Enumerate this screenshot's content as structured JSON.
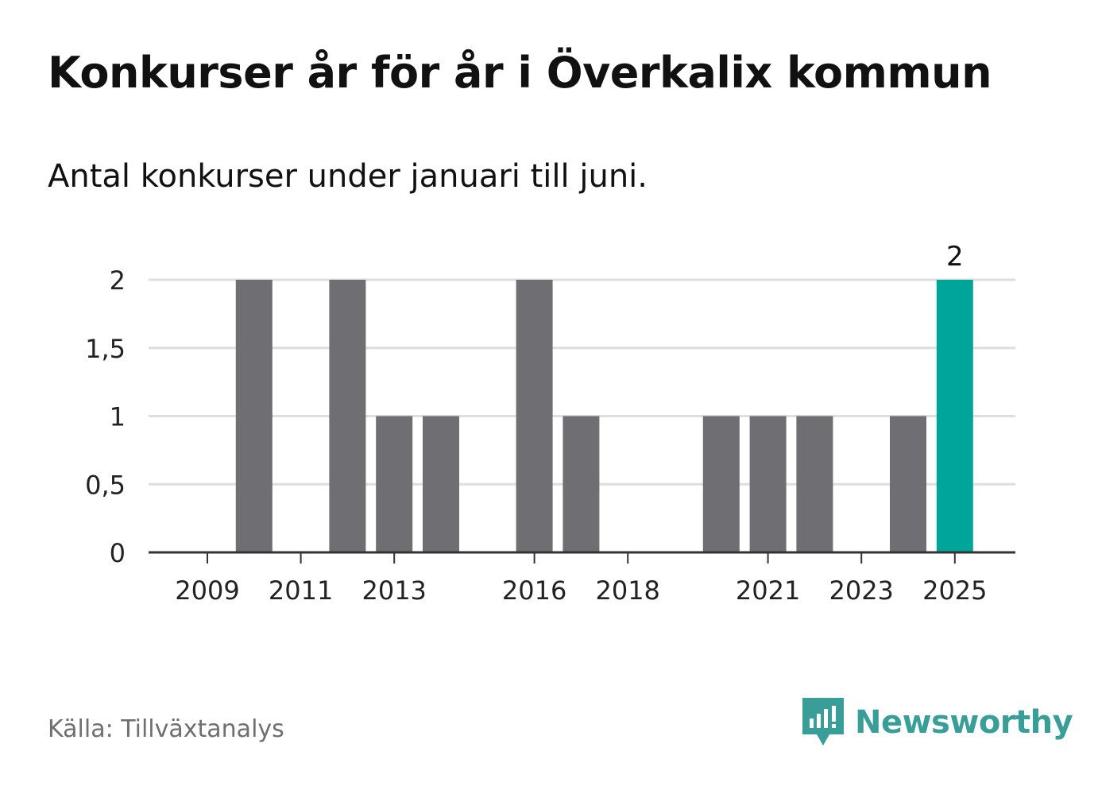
{
  "title": "Konkurser år för år i Överkalix kommun",
  "subtitle": "Antal konkurser under januari till juni.",
  "source": "Källa: Tillväxtanalys",
  "brand": {
    "name": "Newsworthy",
    "logo_icon": "newsworthy-logo-icon"
  },
  "colors": {
    "bar": "#6f6e73",
    "highlight": "#00a59a",
    "grid": "#dedede",
    "axis": "#333333",
    "brand": "#3a9e98"
  },
  "chart_data": {
    "type": "bar",
    "categories": [
      "2009",
      "2010",
      "2011",
      "2012",
      "2013",
      "2014",
      "2015",
      "2016",
      "2017",
      "2018",
      "2019",
      "2020",
      "2021",
      "2022",
      "2023",
      "2024",
      "2025"
    ],
    "values": [
      0,
      2,
      0,
      2,
      1,
      1,
      0,
      2,
      1,
      0,
      0,
      1,
      1,
      1,
      0,
      1,
      2
    ],
    "x_tick_labels": [
      "2009",
      "2011",
      "2013",
      "2016",
      "2018",
      "2021",
      "2023",
      "2025"
    ],
    "y_ticks": [
      0,
      0.5,
      1,
      1.5,
      2
    ],
    "y_tick_labels": [
      "0",
      "0,5",
      "1",
      "1,5",
      "2"
    ],
    "ylim": [
      0,
      2
    ],
    "highlight_category": "2025",
    "annotations": [
      {
        "category": "2025",
        "text": "2"
      }
    ],
    "grid": true,
    "xlabel": "",
    "ylabel": ""
  }
}
